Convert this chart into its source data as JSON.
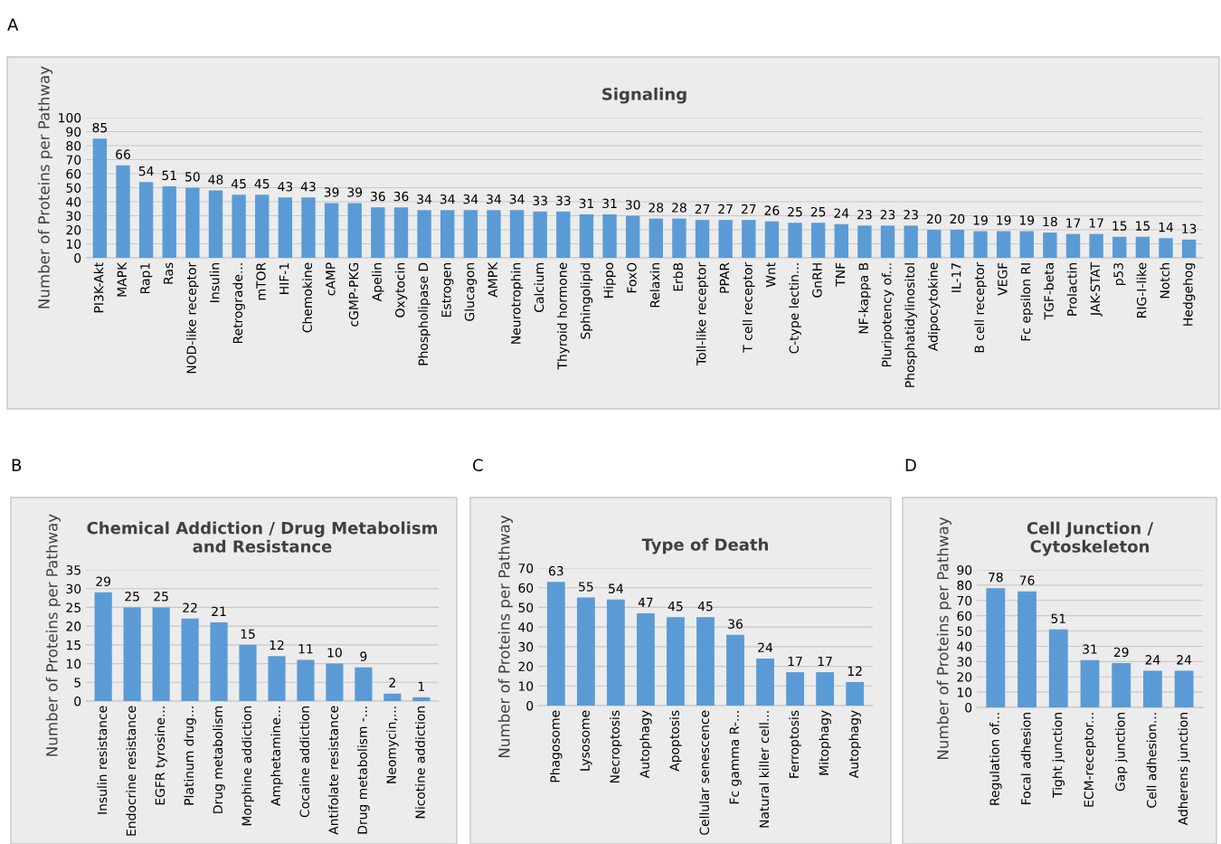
{
  "chart_data": [
    {
      "type": "bar",
      "title": "Signaling",
      "ylabel": "Number of Proteins per Pathway",
      "annotations": [
        "A"
      ],
      "color": "#5b9bd5",
      "grid": "y",
      "data_labels": true,
      "ylim": [
        0,
        100
      ],
      "yticks": [
        0,
        10,
        20,
        30,
        40,
        50,
        60,
        70,
        80,
        90,
        100
      ],
      "categories": [
        "PI3K-Akt",
        "MAPK",
        "Rap1",
        "Ras",
        "NOD-like receptor",
        "Insulin",
        "Retrograde...",
        "mTOR",
        "HIF-1",
        "Chemokine",
        "cAMP",
        "cGMP-PKG",
        "Apelin",
        "Oxytocin",
        "Phospholipase D",
        "Estrogen",
        "Glucagon",
        "AMPK",
        "Neurotrophin",
        "Calcium",
        "Thyroid hormone",
        "Sphingolipid",
        "Hippo",
        "FoxO",
        "Relaxin",
        "ErbB",
        "Toll-like receptor",
        "PPAR",
        "T cell receptor",
        "Wnt",
        "C-type lectin...",
        "GnRH",
        "TNF",
        "NF-kappa B",
        "Pluripotency of...",
        "Phosphatidylinositol",
        "Adipocytokine",
        "IL-17",
        "B cell receptor",
        "VEGF",
        "Fc epsilon RI",
        "TGF-beta",
        "Prolactin",
        "JAK-STAT",
        "p53",
        "RIG-I-like",
        "Notch",
        "Hedgehog"
      ],
      "values": [
        85,
        66,
        54,
        51,
        50,
        48,
        45,
        45,
        43,
        43,
        39,
        39,
        36,
        36,
        34,
        34,
        34,
        34,
        34,
        33,
        33,
        31,
        31,
        30,
        28,
        28,
        27,
        27,
        27,
        26,
        25,
        25,
        24,
        23,
        23,
        23,
        20,
        20,
        19,
        19,
        19,
        18,
        17,
        17,
        15,
        15,
        14,
        13
      ]
    },
    {
      "type": "bar",
      "title": "Chemical Addiction / Drug Metabolism\nand Resistance",
      "ylabel": "Number of Proteins per Pathway",
      "annotations": [
        "B"
      ],
      "color": "#5b9bd5",
      "grid": "y",
      "data_labels": true,
      "ylim": [
        0,
        35
      ],
      "yticks": [
        0,
        5,
        10,
        15,
        20,
        25,
        30,
        35
      ],
      "categories": [
        "Insulin resistance",
        "Endocrine resistance",
        "EGFR tyrosine...",
        "Platinum drug...",
        "Drug metabolism",
        "Morphine addiction",
        "Amphetamine...",
        "Cocaine addiction",
        "Antifolate resistance",
        "Drug metabolism -...",
        "Neomycin,...",
        "Nicotine addiction"
      ],
      "values": [
        29,
        25,
        25,
        22,
        21,
        15,
        12,
        11,
        10,
        9,
        2,
        1
      ]
    },
    {
      "type": "bar",
      "title": "Type of Death",
      "ylabel": "Number of Proteins per Pathway",
      "annotations": [
        "C"
      ],
      "color": "#5b9bd5",
      "grid": "y",
      "data_labels": true,
      "ylim": [
        0,
        70
      ],
      "yticks": [
        0,
        10,
        20,
        30,
        40,
        50,
        60,
        70
      ],
      "categories": [
        "Phagosome",
        "Lysosome",
        "Necroptosis",
        "Autophagy",
        "Apoptosis",
        "Cellular senescence",
        "Fc gamma R-...",
        "Natural killer cell...",
        "Ferroptosis",
        "Mitophagy",
        "Autophagy"
      ],
      "values": [
        63,
        55,
        54,
        47,
        45,
        45,
        36,
        24,
        17,
        17,
        12
      ]
    },
    {
      "type": "bar",
      "title": "Cell Junction /\nCytoskeleton",
      "ylabel": "Number of Proteins per Pathway",
      "annotations": [
        "D"
      ],
      "color": "#5b9bd5",
      "grid": "y",
      "data_labels": true,
      "ylim": [
        0,
        90
      ],
      "yticks": [
        0,
        10,
        20,
        30,
        40,
        50,
        60,
        70,
        80,
        90
      ],
      "categories": [
        "Regulation of...",
        "Focal adhesion",
        "Tight junction",
        "ECM-receptor...",
        "Gap junction",
        "Cell adhesion...",
        "Adherens junction"
      ],
      "values": [
        78,
        76,
        51,
        31,
        29,
        24,
        24
      ]
    }
  ]
}
